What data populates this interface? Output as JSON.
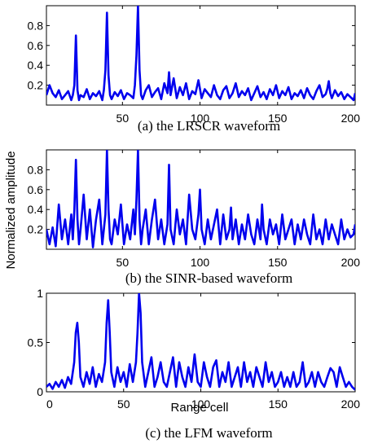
{
  "figure": {
    "ylabel": "Normalized amplitude",
    "xlabel": "Range cell",
    "line_color": "#0000ee"
  },
  "chart_data": [
    {
      "type": "line",
      "caption": "(a) the LRSCR waveform",
      "xlim": [
        1,
        200
      ],
      "ylim": [
        0,
        1.0
      ],
      "xticks": [
        50,
        100,
        150,
        200
      ],
      "yticks": [
        0.2,
        0.4,
        0.6,
        0.8
      ],
      "ytick_labels": [
        "0.2",
        "0.4",
        "0.6",
        "0.8"
      ],
      "series": [
        {
          "x": [
            1,
            3,
            5,
            7,
            9,
            11,
            13,
            15,
            17,
            18,
            19,
            20,
            21,
            22,
            23,
            25,
            27,
            29,
            31,
            33,
            35,
            37,
            38,
            39,
            40,
            41,
            42,
            43,
            45,
            47,
            49,
            51,
            53,
            55,
            57,
            58,
            59,
            60,
            61,
            62,
            63,
            65,
            67,
            69,
            71,
            73,
            75,
            77,
            79,
            80,
            81,
            83,
            85,
            87,
            89,
            91,
            93,
            95,
            97,
            99,
            101,
            103,
            105,
            107,
            109,
            111,
            113,
            115,
            117,
            119,
            121,
            123,
            125,
            127,
            129,
            131,
            133,
            135,
            137,
            139,
            141,
            143,
            145,
            147,
            149,
            151,
            153,
            155,
            157,
            159,
            161,
            163,
            165,
            167,
            169,
            171,
            173,
            175,
            177,
            179,
            181,
            182,
            183,
            184,
            185,
            187,
            189,
            191,
            193,
            195,
            197,
            199,
            200
          ],
          "y": [
            0.1,
            0.2,
            0.12,
            0.08,
            0.15,
            0.06,
            0.1,
            0.14,
            0.05,
            0.1,
            0.2,
            0.7,
            0.15,
            0.05,
            0.1,
            0.08,
            0.16,
            0.06,
            0.12,
            0.09,
            0.14,
            0.05,
            0.15,
            0.35,
            0.93,
            0.3,
            0.1,
            0.06,
            0.13,
            0.09,
            0.15,
            0.06,
            0.12,
            0.1,
            0.07,
            0.2,
            0.5,
            1.0,
            0.35,
            0.1,
            0.06,
            0.15,
            0.2,
            0.08,
            0.13,
            0.17,
            0.06,
            0.22,
            0.12,
            0.33,
            0.1,
            0.27,
            0.07,
            0.18,
            0.1,
            0.22,
            0.06,
            0.14,
            0.11,
            0.25,
            0.07,
            0.16,
            0.12,
            0.08,
            0.2,
            0.1,
            0.06,
            0.15,
            0.19,
            0.07,
            0.12,
            0.22,
            0.08,
            0.14,
            0.1,
            0.17,
            0.05,
            0.12,
            0.19,
            0.08,
            0.13,
            0.06,
            0.16,
            0.1,
            0.2,
            0.07,
            0.14,
            0.1,
            0.18,
            0.06,
            0.12,
            0.09,
            0.15,
            0.07,
            0.17,
            0.1,
            0.06,
            0.14,
            0.2,
            0.08,
            0.11,
            0.16,
            0.24,
            0.12,
            0.07,
            0.15,
            0.09,
            0.13,
            0.06,
            0.11,
            0.08,
            0.05,
            0.12
          ]
        }
      ]
    },
    {
      "type": "line",
      "caption": "(b) the SINR-based waveform",
      "xlim": [
        1,
        200
      ],
      "ylim": [
        0,
        1.0
      ],
      "xticks": [
        50,
        100,
        150,
        200
      ],
      "yticks": [
        0.2,
        0.4,
        0.6,
        0.8
      ],
      "ytick_labels": [
        "0.2",
        "0.4",
        "0.6",
        "0.8"
      ],
      "series": [
        {
          "x": [
            1,
            3,
            5,
            7,
            9,
            11,
            13,
            15,
            17,
            18,
            19,
            20,
            21,
            22,
            23,
            25,
            27,
            29,
            31,
            33,
            35,
            37,
            38,
            39,
            40,
            41,
            42,
            43,
            45,
            47,
            49,
            51,
            53,
            55,
            57,
            58,
            59,
            60,
            61,
            62,
            63,
            65,
            67,
            69,
            71,
            73,
            75,
            77,
            79,
            80,
            81,
            83,
            85,
            87,
            89,
            91,
            93,
            95,
            97,
            99,
            100,
            101,
            103,
            105,
            107,
            109,
            111,
            113,
            115,
            117,
            119,
            120,
            121,
            123,
            125,
            127,
            129,
            131,
            133,
            135,
            137,
            139,
            140,
            141,
            143,
            145,
            147,
            149,
            151,
            153,
            155,
            157,
            159,
            161,
            163,
            165,
            167,
            169,
            171,
            173,
            175,
            177,
            179,
            181,
            183,
            185,
            187,
            189,
            191,
            193,
            195,
            197,
            199,
            200
          ],
          "y": [
            0.2,
            0.05,
            0.22,
            0.03,
            0.45,
            0.1,
            0.3,
            0.05,
            0.35,
            0.1,
            0.4,
            0.9,
            0.3,
            0.05,
            0.2,
            0.55,
            0.1,
            0.4,
            0.02,
            0.3,
            0.5,
            0.05,
            0.2,
            0.35,
            1.0,
            0.4,
            0.1,
            0.05,
            0.3,
            0.15,
            0.45,
            0.05,
            0.25,
            0.1,
            0.4,
            0.15,
            0.5,
            1.0,
            0.3,
            0.05,
            0.2,
            0.4,
            0.05,
            0.3,
            0.5,
            0.1,
            0.3,
            0.05,
            0.25,
            0.85,
            0.2,
            0.05,
            0.4,
            0.15,
            0.3,
            0.05,
            0.55,
            0.2,
            0.1,
            0.35,
            0.6,
            0.2,
            0.05,
            0.3,
            0.1,
            0.25,
            0.4,
            0.05,
            0.35,
            0.1,
            0.2,
            0.42,
            0.1,
            0.3,
            0.05,
            0.25,
            0.1,
            0.35,
            0.15,
            0.05,
            0.3,
            0.1,
            0.45,
            0.2,
            0.05,
            0.3,
            0.15,
            0.25,
            0.05,
            0.35,
            0.1,
            0.2,
            0.3,
            0.05,
            0.25,
            0.1,
            0.3,
            0.15,
            0.05,
            0.35,
            0.1,
            0.2,
            0.05,
            0.3,
            0.1,
            0.25,
            0.15,
            0.05,
            0.3,
            0.1,
            0.2,
            0.12,
            0.15,
            0.25
          ]
        }
      ]
    },
    {
      "type": "line",
      "caption": "(c) the LFM waveform",
      "xlim": [
        0,
        200
      ],
      "ylim": [
        0,
        1.0
      ],
      "xticks": [
        0,
        50,
        100,
        150,
        200
      ],
      "yticks": [
        0,
        0.5,
        1
      ],
      "ytick_labels": [
        "0",
        "0.5",
        "1"
      ],
      "series": [
        {
          "x": [
            0,
            2,
            4,
            6,
            8,
            10,
            12,
            14,
            16,
            18,
            19,
            20,
            21,
            22,
            24,
            26,
            28,
            30,
            32,
            34,
            36,
            38,
            39,
            40,
            41,
            42,
            44,
            46,
            48,
            50,
            52,
            54,
            56,
            58,
            59,
            60,
            61,
            62,
            64,
            66,
            68,
            70,
            72,
            74,
            76,
            78,
            80,
            82,
            84,
            86,
            88,
            90,
            92,
            94,
            96,
            98,
            100,
            102,
            104,
            106,
            108,
            110,
            112,
            114,
            116,
            118,
            120,
            122,
            124,
            126,
            128,
            130,
            132,
            134,
            136,
            138,
            140,
            142,
            144,
            146,
            148,
            150,
            152,
            154,
            156,
            158,
            160,
            162,
            164,
            166,
            168,
            170,
            172,
            174,
            176,
            178,
            180,
            182,
            184,
            186,
            188,
            190,
            192,
            194,
            196,
            198,
            200
          ],
          "y": [
            0.05,
            0.08,
            0.03,
            0.1,
            0.05,
            0.12,
            0.04,
            0.15,
            0.08,
            0.3,
            0.6,
            0.7,
            0.5,
            0.15,
            0.05,
            0.2,
            0.08,
            0.25,
            0.05,
            0.18,
            0.1,
            0.3,
            0.7,
            0.93,
            0.6,
            0.2,
            0.05,
            0.25,
            0.1,
            0.2,
            0.05,
            0.28,
            0.1,
            0.3,
            0.6,
            1.0,
            0.8,
            0.3,
            0.05,
            0.2,
            0.35,
            0.05,
            0.15,
            0.3,
            0.1,
            0.05,
            0.2,
            0.35,
            0.05,
            0.3,
            0.15,
            0.05,
            0.25,
            0.1,
            0.38,
            0.1,
            0.05,
            0.3,
            0.15,
            0.05,
            0.25,
            0.32,
            0.05,
            0.2,
            0.1,
            0.3,
            0.05,
            0.15,
            0.25,
            0.05,
            0.3,
            0.1,
            0.2,
            0.05,
            0.25,
            0.15,
            0.05,
            0.3,
            0.1,
            0.2,
            0.05,
            0.1,
            0.2,
            0.05,
            0.15,
            0.05,
            0.2,
            0.05,
            0.1,
            0.3,
            0.05,
            0.1,
            0.2,
            0.05,
            0.2,
            0.1,
            0.05,
            0.15,
            0.24,
            0.2,
            0.05,
            0.25,
            0.15,
            0.05,
            0.1,
            0.05,
            0.02
          ]
        }
      ]
    }
  ]
}
